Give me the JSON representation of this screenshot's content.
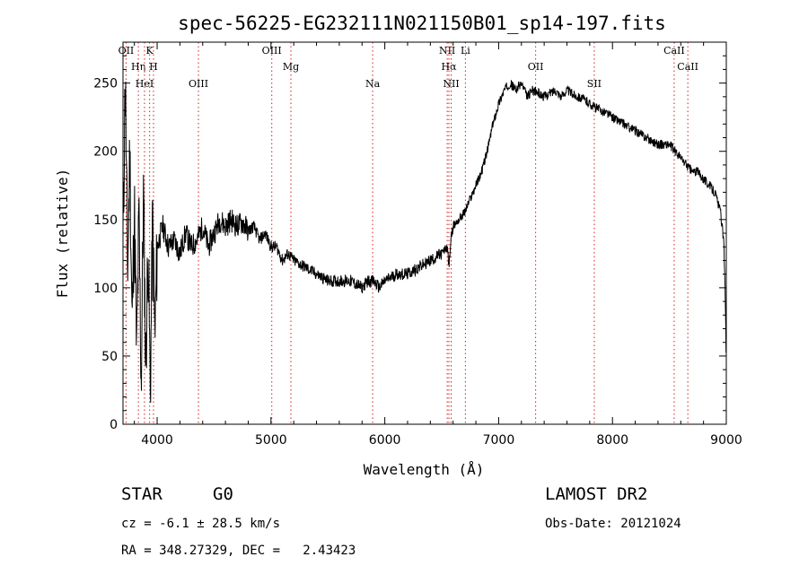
{
  "chart_data": {
    "type": "line",
    "title": "spec-56225-EG232111N021150B01_sp14-197.fits",
    "xlabel": "Wavelength (Å)",
    "ylabel": "Flux (relative)",
    "xlim": [
      3700,
      9000
    ],
    "ylim": [
      0,
      2800
    ],
    "xticks": [
      4000,
      5000,
      6000,
      7000,
      8000,
      9000
    ],
    "yticks": [
      0,
      500,
      1000,
      1500,
      2000,
      2500
    ],
    "ytick_labels": [
      "0",
      "50",
      "100",
      "150",
      "200",
      "250"
    ],
    "series": [
      {
        "name": "flux",
        "x": [
          3700,
          3720,
          3740,
          3760,
          3780,
          3800,
          3820,
          3840,
          3860,
          3880,
          3900,
          3920,
          3940,
          3960,
          3980,
          4000,
          4050,
          4100,
          4150,
          4200,
          4250,
          4300,
          4350,
          4400,
          4450,
          4500,
          4550,
          4600,
          4650,
          4700,
          4750,
          4800,
          4850,
          4900,
          4950,
          5000,
          5050,
          5100,
          5150,
          5200,
          5300,
          5400,
          5500,
          5600,
          5700,
          5800,
          5850,
          5900,
          5950,
          6000,
          6100,
          6200,
          6300,
          6400,
          6500,
          6550,
          6563,
          6580,
          6600,
          6650,
          6700,
          6750,
          6800,
          6850,
          6900,
          6950,
          7000,
          7050,
          7100,
          7150,
          7200,
          7250,
          7300,
          7400,
          7500,
          7550,
          7600,
          7650,
          7700,
          7750,
          7800,
          7850,
          7900,
          7950,
          8000,
          8100,
          8200,
          8300,
          8400,
          8500,
          8550,
          8600,
          8650,
          8700,
          8750,
          8800,
          8850,
          8900,
          8950,
          8970,
          8980,
          8990,
          9000
        ],
        "y": [
          1300,
          2600,
          1100,
          2000,
          700,
          1600,
          500,
          1500,
          300,
          1700,
          400,
          1300,
          250,
          1500,
          600,
          1300,
          1450,
          1300,
          1350,
          1250,
          1400,
          1300,
          1350,
          1450,
          1300,
          1400,
          1500,
          1450,
          1500,
          1450,
          1480,
          1420,
          1450,
          1350,
          1400,
          1300,
          1300,
          1200,
          1250,
          1200,
          1150,
          1100,
          1050,
          1050,
          1050,
          1000,
          1050,
          1050,
          1000,
          1050,
          1100,
          1100,
          1150,
          1200,
          1250,
          1300,
          1150,
          1350,
          1450,
          1500,
          1550,
          1650,
          1750,
          1850,
          2000,
          2200,
          2350,
          2450,
          2500,
          2450,
          2500,
          2400,
          2450,
          2400,
          2450,
          2400,
          2450,
          2420,
          2400,
          2380,
          2350,
          2320,
          2300,
          2280,
          2250,
          2200,
          2150,
          2100,
          2050,
          2050,
          2000,
          1950,
          1900,
          1850,
          1850,
          1800,
          1750,
          1700,
          1550,
          1400,
          1300,
          1000,
          400
        ]
      }
    ],
    "lines": [
      {
        "label": "OII",
        "x": 3727
      },
      {
        "label": "Hη",
        "x": 3835
      },
      {
        "label": "HeI",
        "x": 3889
      },
      {
        "label": "K",
        "x": 3934
      },
      {
        "label": "H",
        "x": 3968
      },
      {
        "label": "OIII",
        "x": 4363
      },
      {
        "label": "OIII",
        "x": 5007
      },
      {
        "label": "Mg",
        "x": 5175
      },
      {
        "label": "Na",
        "x": 5893
      },
      {
        "label": "NII",
        "x": 6548
      },
      {
        "label": "Hα",
        "x": 6563
      },
      {
        "label": "NII",
        "x": 6583
      },
      {
        "label": "Li",
        "x": 6708
      },
      {
        "label": "OII",
        "x": 7325
      },
      {
        "label": "SII",
        "x": 7840
      },
      {
        "label": "CaII",
        "x": 8542
      },
      {
        "label": "CaII",
        "x": 8662
      }
    ]
  },
  "info": {
    "object_class": "STAR",
    "subclass": "G0",
    "survey": "LAMOST DR2",
    "cz": "cz = -6.1 ± 28.5 km/s",
    "obs_date": "Obs-Date: 20121024",
    "coords": "RA = 348.27329, DEC =   2.43423"
  }
}
